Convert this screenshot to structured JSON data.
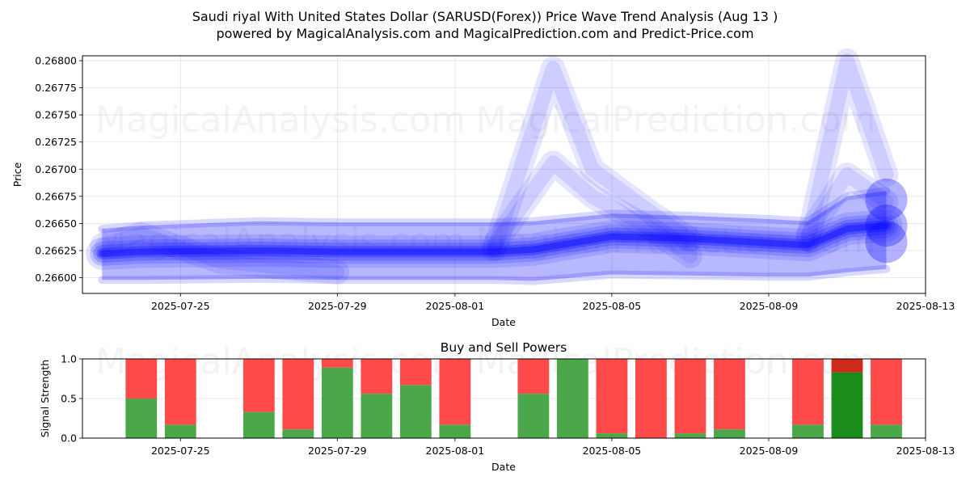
{
  "title_line1": "Saudi riyal With United States Dollar (SARUSD(Forex)) Price Wave Trend Analysis (Aug 13 )",
  "title_line2": "powered by MagicalAnalysis.com and MagicalPrediction.com and Predict-Price.com",
  "watermark_left": "MagicalAnalysis.com",
  "watermark_right": "MagicalPrediction.com",
  "chart_data": [
    {
      "type": "area",
      "title": "",
      "xlabel": "Date",
      "ylabel": "Price",
      "x_ticks": [
        "2025-07-25",
        "2025-07-29",
        "2025-08-01",
        "2025-08-05",
        "2025-08-09",
        "2025-08-13"
      ],
      "y_ticks": [
        "0.26600",
        "0.26625",
        "0.26650",
        "0.26675",
        "0.26700",
        "0.26725",
        "0.26750",
        "0.26775",
        "0.26800"
      ],
      "ylim": [
        0.265855,
        0.268045
      ],
      "xlim": [
        "2025-07-22T12:00",
        "2025-08-13"
      ],
      "grid": true,
      "series_color": "#0000ff",
      "band_series": [
        {
          "x": [
            "2025-07-23",
            "2025-07-24",
            "2025-07-27",
            "2025-07-29",
            "2025-08-02",
            "2025-08-03",
            "2025-08-05",
            "2025-08-07",
            "2025-08-09",
            "2025-08-10",
            "2025-08-11",
            "2025-08-12"
          ],
          "low": [
            0.26598,
            0.26598,
            0.26599,
            0.26598,
            0.26598,
            0.26597,
            0.26603,
            0.26602,
            0.26601,
            0.26601,
            0.26605,
            0.26608
          ],
          "mid": [
            0.26622,
            0.26624,
            0.26625,
            0.26624,
            0.26624,
            0.26626,
            0.26638,
            0.26636,
            0.26632,
            0.2663,
            0.26645,
            0.26648
          ],
          "high": [
            0.26645,
            0.26648,
            0.26652,
            0.26651,
            0.26651,
            0.26652,
            0.26659,
            0.26657,
            0.26654,
            0.26652,
            0.26675,
            0.2668
          ]
        }
      ],
      "spike_series": [
        {
          "x": [
            "2025-08-02",
            "2025-08-03T12:00",
            "2025-08-04T12:00",
            "2025-08-06",
            "2025-08-07"
          ],
          "y": [
            0.26626,
            0.26793,
            0.267,
            0.2666,
            0.26635
          ]
        },
        {
          "x": [
            "2025-08-02",
            "2025-08-03T12:00",
            "2025-08-04T12:00",
            "2025-08-06",
            "2025-08-07"
          ],
          "y": [
            0.2663,
            0.26706,
            0.26675,
            0.26645,
            0.2662
          ]
        },
        {
          "x": [
            "2025-08-10",
            "2025-08-11",
            "2025-08-12"
          ],
          "y": [
            0.26635,
            0.268,
            0.26695
          ]
        },
        {
          "x": [
            "2025-08-10",
            "2025-08-11",
            "2025-08-12"
          ],
          "y": [
            0.2664,
            0.26695,
            0.2667
          ]
        },
        {
          "x": [
            "2025-07-23",
            "2025-07-24",
            "2025-07-26",
            "2025-07-29"
          ],
          "y": [
            0.2663,
            0.2664,
            0.26615,
            0.26605
          ]
        }
      ]
    },
    {
      "type": "bar",
      "title": "Buy and Sell Powers",
      "xlabel": "Date",
      "ylabel": "Signal Strength",
      "x_ticks": [
        "2025-07-25",
        "2025-07-29",
        "2025-08-01",
        "2025-08-05",
        "2025-08-09",
        "2025-08-13"
      ],
      "y_ticks": [
        "0.0",
        "0.5",
        "1.0"
      ],
      "ylim": [
        0,
        1
      ],
      "xlim": [
        "2025-07-22T12:00",
        "2025-08-13"
      ],
      "grid": true,
      "buy_color": "#4aa84a",
      "sell_color": "#ff4a4a",
      "highlight_buy_color": "#1a8c1a",
      "highlight_sell_color": "#cc2a1a",
      "bars": [
        {
          "date": "2025-07-24",
          "buy": 0.5
        },
        {
          "date": "2025-07-25",
          "buy": 0.17
        },
        {
          "date": "2025-07-27",
          "buy": 0.33
        },
        {
          "date": "2025-07-28",
          "buy": 0.11
        },
        {
          "date": "2025-07-29",
          "buy": 0.89
        },
        {
          "date": "2025-07-30",
          "buy": 0.56
        },
        {
          "date": "2025-07-31",
          "buy": 0.67
        },
        {
          "date": "2025-08-01",
          "buy": 0.17
        },
        {
          "date": "2025-08-03",
          "buy": 0.56
        },
        {
          "date": "2025-08-04",
          "buy": 1.0
        },
        {
          "date": "2025-08-05",
          "buy": 0.06
        },
        {
          "date": "2025-08-06",
          "buy": 0.0
        },
        {
          "date": "2025-08-07",
          "buy": 0.06
        },
        {
          "date": "2025-08-08",
          "buy": 0.11
        },
        {
          "date": "2025-08-10",
          "buy": 0.17
        },
        {
          "date": "2025-08-11",
          "buy": 0.83,
          "highlight": true
        },
        {
          "date": "2025-08-12",
          "buy": 0.17
        }
      ]
    }
  ]
}
